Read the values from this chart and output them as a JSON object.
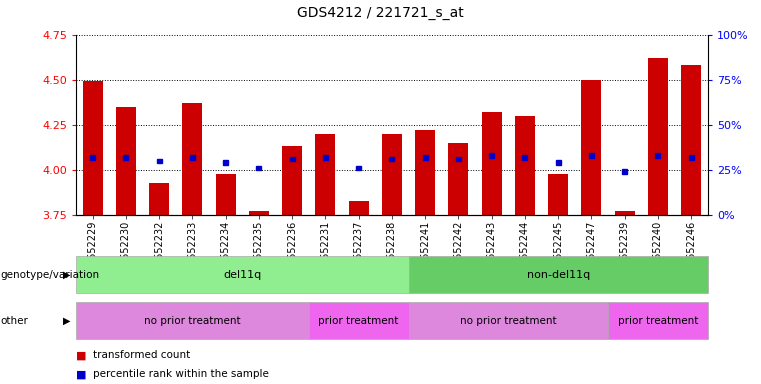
{
  "title": "GDS4212 / 221721_s_at",
  "samples": [
    "GSM652229",
    "GSM652230",
    "GSM652232",
    "GSM652233",
    "GSM652234",
    "GSM652235",
    "GSM652236",
    "GSM652231",
    "GSM652237",
    "GSM652238",
    "GSM652241",
    "GSM652242",
    "GSM652243",
    "GSM652244",
    "GSM652245",
    "GSM652247",
    "GSM652239",
    "GSM652240",
    "GSM652246"
  ],
  "red_values": [
    4.49,
    4.35,
    3.93,
    4.37,
    3.98,
    3.77,
    4.13,
    4.2,
    3.83,
    4.2,
    4.22,
    4.15,
    4.32,
    4.3,
    3.98,
    4.5,
    3.77,
    4.62,
    4.58
  ],
  "blue_values": [
    4.07,
    4.07,
    4.05,
    4.07,
    4.04,
    4.01,
    4.06,
    4.07,
    4.01,
    4.06,
    4.07,
    4.06,
    4.08,
    4.07,
    4.04,
    4.08,
    3.99,
    4.08,
    4.07
  ],
  "ymin": 3.75,
  "ymax": 4.75,
  "yticks": [
    3.75,
    4.0,
    4.25,
    4.5,
    4.75
  ],
  "bar_color": "#cc0000",
  "blue_color": "#0000cc",
  "bar_width": 0.6,
  "baseline": 3.75,
  "genotype_groups": [
    {
      "label": "del11q",
      "start": 0,
      "end": 10,
      "color": "#90ee90"
    },
    {
      "label": "non-del11q",
      "start": 10,
      "end": 19,
      "color": "#66cc66"
    }
  ],
  "other_groups": [
    {
      "label": "no prior treatment",
      "start": 0,
      "end": 7,
      "color": "#dd88dd"
    },
    {
      "label": "prior treatment",
      "start": 7,
      "end": 10,
      "color": "#ee66ee"
    },
    {
      "label": "no prior treatment",
      "start": 10,
      "end": 16,
      "color": "#dd88dd"
    },
    {
      "label": "prior treatment",
      "start": 16,
      "end": 19,
      "color": "#ee66ee"
    }
  ],
  "legend_items": [
    {
      "label": "transformed count",
      "color": "#cc0000"
    },
    {
      "label": "percentile rank within the sample",
      "color": "#0000cc"
    }
  ],
  "right_yticks": [
    0,
    25,
    50,
    75,
    100
  ],
  "right_yticklabels": [
    "0%",
    "25%",
    "50%",
    "75%",
    "100%"
  ]
}
